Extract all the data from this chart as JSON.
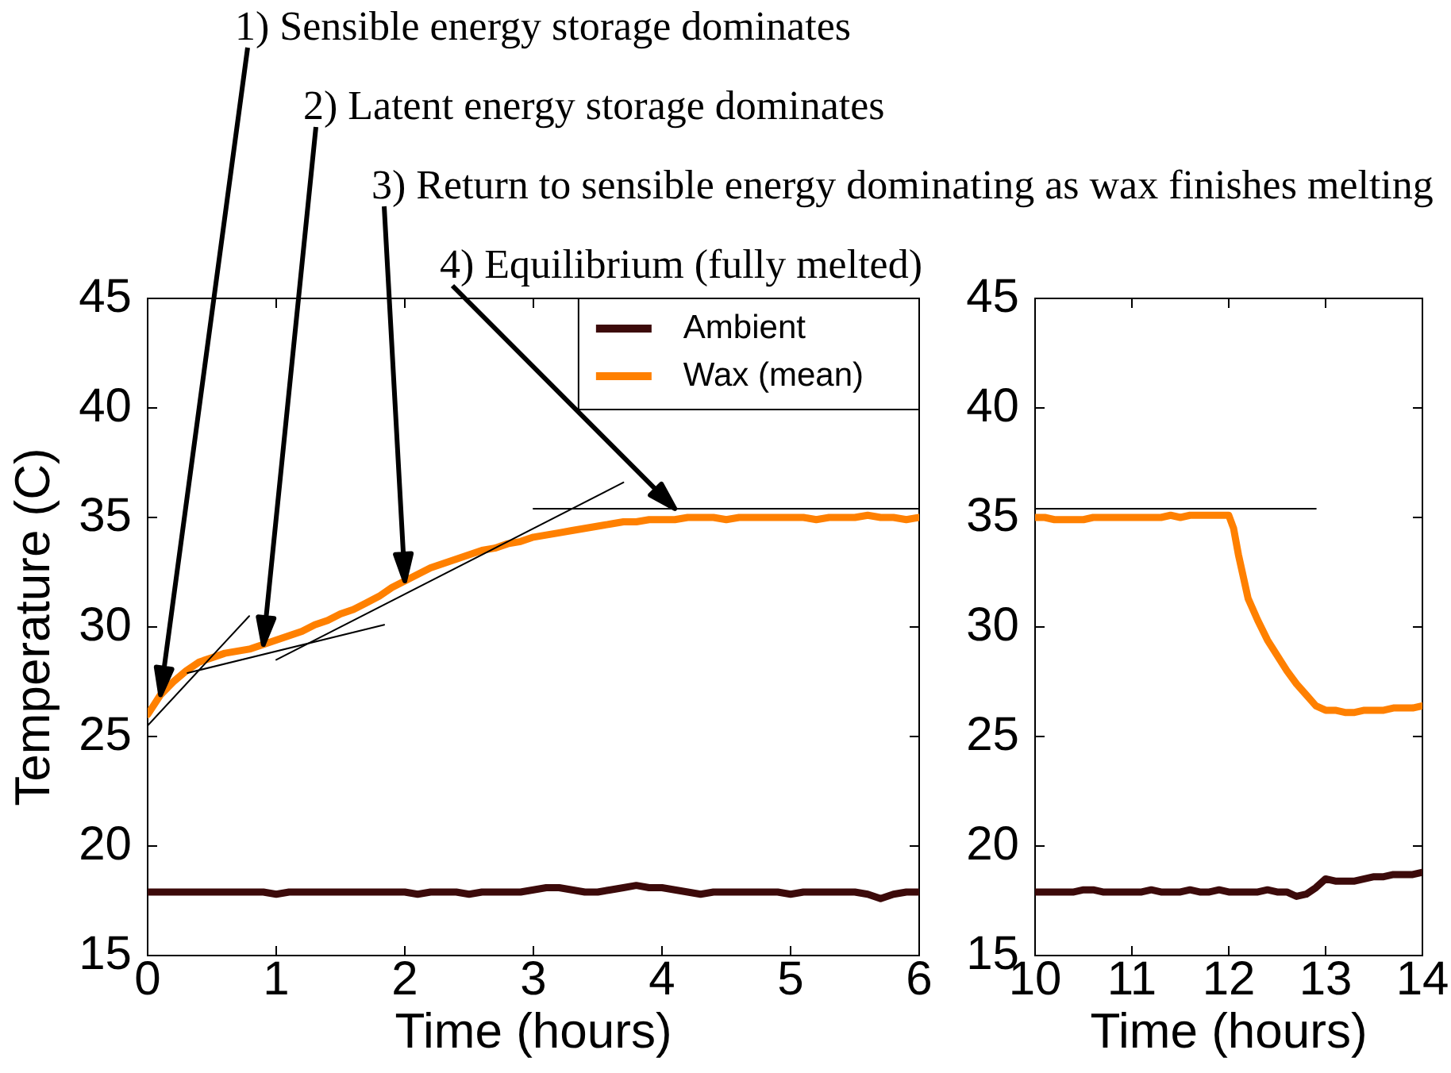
{
  "chart_data": [
    {
      "type": "line",
      "xlabel": "Time (hours)",
      "ylabel": "Temperature (C)",
      "legend": "top right",
      "x": [
        0,
        0.1,
        0.2,
        0.3,
        0.4,
        0.5,
        0.6,
        0.7,
        0.8,
        0.9,
        1.0,
        1.1,
        1.2,
        1.3,
        1.4,
        1.5,
        1.6,
        1.7,
        1.8,
        1.9,
        2.0,
        2.1,
        2.2,
        2.3,
        2.4,
        2.5,
        2.6,
        2.7,
        2.8,
        2.9,
        3.0,
        3.1,
        3.2,
        3.3,
        3.4,
        3.5,
        3.6,
        3.7,
        3.8,
        3.9,
        4.0,
        4.1,
        4.2,
        4.3,
        4.4,
        4.5,
        4.6,
        4.7,
        4.8,
        4.9,
        5.0,
        5.1,
        5.2,
        5.3,
        5.4,
        5.5,
        5.6,
        5.7,
        5.8,
        5.9,
        6.0
      ],
      "xlim": [
        0,
        6
      ],
      "xticks": [
        0,
        1,
        2,
        3,
        4,
        5,
        6
      ],
      "ylim": [
        15,
        45
      ],
      "yticks": [
        15,
        20,
        25,
        30,
        35,
        40,
        45
      ],
      "series": [
        {
          "name": "Ambient",
          "color": "#3c0a0a",
          "values": [
            17.9,
            17.9,
            17.9,
            17.9,
            17.9,
            17.9,
            17.9,
            17.9,
            17.9,
            17.9,
            17.8,
            17.9,
            17.9,
            17.9,
            17.9,
            17.9,
            17.9,
            17.9,
            17.9,
            17.9,
            17.9,
            17.8,
            17.9,
            17.9,
            17.9,
            17.8,
            17.9,
            17.9,
            17.9,
            17.9,
            18.0,
            18.1,
            18.1,
            18.0,
            17.9,
            17.9,
            18.0,
            18.1,
            18.2,
            18.1,
            18.1,
            18.0,
            17.9,
            17.8,
            17.9,
            17.9,
            17.9,
            17.9,
            17.9,
            17.9,
            17.8,
            17.9,
            17.9,
            17.9,
            17.9,
            17.9,
            17.8,
            17.6,
            17.8,
            17.9,
            17.9
          ]
        },
        {
          "name": "Wax (mean)",
          "color": "#ff8000",
          "values": [
            26.0,
            26.9,
            27.5,
            28.0,
            28.4,
            28.6,
            28.8,
            28.9,
            29.0,
            29.2,
            29.4,
            29.6,
            29.8,
            30.1,
            30.3,
            30.6,
            30.8,
            31.1,
            31.4,
            31.8,
            32.1,
            32.4,
            32.7,
            32.9,
            33.1,
            33.3,
            33.5,
            33.6,
            33.8,
            33.9,
            34.1,
            34.2,
            34.3,
            34.4,
            34.5,
            34.6,
            34.7,
            34.8,
            34.8,
            34.9,
            34.9,
            34.9,
            35.0,
            35.0,
            35.0,
            34.9,
            35.0,
            35.0,
            35.0,
            35.0,
            35.0,
            35.0,
            34.9,
            35.0,
            35.0,
            35.0,
            35.1,
            35.0,
            35.0,
            34.9,
            35.0
          ]
        },
        {
          "color": "#000000",
          "x": [
            0,
            0.79
          ],
          "values": [
            25.5,
            30.5
          ]
        },
        {
          "color": "#000000",
          "x": [
            0.31,
            1.84
          ],
          "values": [
            27.9,
            30.1
          ]
        },
        {
          "color": "#000000",
          "x": [
            1.0,
            3.7
          ],
          "values": [
            28.5,
            36.6
          ]
        },
        {
          "color": "#000000",
          "x": [
            3.0,
            6.0
          ],
          "values": [
            35.4,
            35.4
          ]
        }
      ],
      "annotations": [
        {
          "text": "1) Sensible energy storage dominates",
          "x": 0.1,
          "y": 26.9
        },
        {
          "text": "2) Latent energy storage dominates",
          "x": 0.9,
          "y": 29.2
        },
        {
          "text": "3) Return to sensible energy dominating as wax finishes melting",
          "x": 2.0,
          "y": 32.1
        },
        {
          "text": "4) Equilibrium (fully melted)",
          "x": 4.1,
          "y": 35.4
        }
      ]
    },
    {
      "type": "line",
      "xlabel": "Time (hours)",
      "x": [
        10.0,
        10.1,
        10.2,
        10.3,
        10.4,
        10.5,
        10.6,
        10.7,
        10.8,
        10.9,
        11.0,
        11.1,
        11.2,
        11.3,
        11.4,
        11.5,
        11.6,
        11.7,
        11.8,
        11.9,
        12.0,
        12.05,
        12.1,
        12.2,
        12.3,
        12.4,
        12.5,
        12.6,
        12.7,
        12.8,
        12.9,
        13.0,
        13.1,
        13.2,
        13.3,
        13.4,
        13.5,
        13.6,
        13.7,
        13.8,
        13.9,
        14.0
      ],
      "xlim": [
        10,
        14
      ],
      "xticks": [
        10,
        11,
        12,
        13,
        14
      ],
      "ylim": [
        15,
        45
      ],
      "yticks": [
        15,
        20,
        25,
        30,
        35,
        40,
        45
      ],
      "series": [
        {
          "color": "#3c0a0a",
          "values": [
            17.9,
            17.9,
            17.9,
            17.9,
            17.9,
            18.0,
            18.0,
            17.9,
            17.9,
            17.9,
            17.9,
            17.9,
            18.0,
            17.9,
            17.9,
            17.9,
            18.0,
            17.9,
            17.9,
            18.0,
            17.9,
            17.9,
            17.9,
            17.9,
            17.9,
            18.0,
            17.9,
            17.9,
            17.7,
            17.8,
            18.1,
            18.5,
            18.4,
            18.4,
            18.4,
            18.5,
            18.6,
            18.6,
            18.7,
            18.7,
            18.7,
            18.8
          ]
        },
        {
          "color": "#ff8000",
          "values": [
            35.0,
            35.0,
            34.9,
            34.9,
            34.9,
            34.9,
            35.0,
            35.0,
            35.0,
            35.0,
            35.0,
            35.0,
            35.0,
            35.0,
            35.1,
            35.0,
            35.1,
            35.1,
            35.1,
            35.1,
            35.1,
            34.5,
            33.3,
            31.3,
            30.3,
            29.4,
            28.7,
            28.0,
            27.4,
            26.9,
            26.4,
            26.2,
            26.2,
            26.1,
            26.1,
            26.2,
            26.2,
            26.2,
            26.3,
            26.3,
            26.3,
            26.4
          ]
        },
        {
          "color": "#000000",
          "x": [
            10,
            12.9
          ],
          "values": [
            35.4,
            35.4
          ]
        }
      ]
    }
  ]
}
